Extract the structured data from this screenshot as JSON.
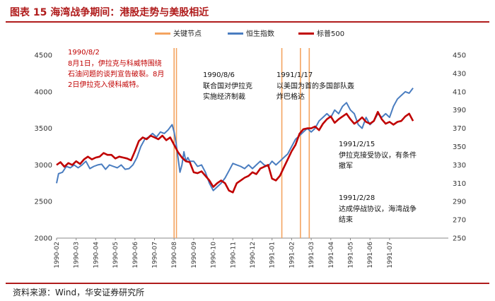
{
  "page": {
    "title": "图表 15 海湾战争期间：港股走势与美股相近",
    "source": "资料来源：Wind，华安证券研究所"
  },
  "colors": {
    "hsi": "#4a7dc0",
    "sp500": "#c00000",
    "events": "#f4a460",
    "title_red": "#b01c1c"
  },
  "chart_data": {
    "type": "line",
    "title": "海湾战争期间：港股走势与美股相近",
    "legend": [
      {
        "name": "关键节点",
        "kind": "bar"
      },
      {
        "name": "恒生指数",
        "kind": "line"
      },
      {
        "name": "标普500",
        "kind": "line"
      }
    ],
    "legend_placement": "top",
    "y_left": {
      "min": 2000,
      "max": 4500,
      "ticks": [
        2000,
        2500,
        3000,
        3500,
        4000,
        4500
      ]
    },
    "y_right": {
      "min": 250,
      "max": 450,
      "ticks": [
        250,
        270,
        290,
        310,
        330,
        350,
        370,
        390,
        410,
        430,
        450
      ]
    },
    "x_range": [
      0,
      20
    ],
    "x_ticks": [
      "1990-02",
      "1990-03",
      "1990-04",
      "1990-05",
      "1990-06",
      "1990-07",
      "1990-08",
      "1990-09",
      "1990-10",
      "1990-11",
      "1990-12",
      "1991-01",
      "1991-02",
      "1991-03",
      "1991-04",
      "1991-05",
      "1991-06",
      "1991-07"
    ],
    "key_dates": [
      {
        "date": "1990/8/2",
        "x": 6.0
      },
      {
        "date": "1990/8/6",
        "x": 6.12
      },
      {
        "date": "1991/1/17",
        "x": 11.5
      },
      {
        "date": "1991/2/15",
        "x": 12.45
      },
      {
        "date": "1991/2/28",
        "x": 12.9
      }
    ],
    "series": [
      {
        "name": "恒生指数",
        "axis": "left",
        "points": [
          [
            0.0,
            2750
          ],
          [
            0.1,
            2880
          ],
          [
            0.3,
            2900
          ],
          [
            0.5,
            2980
          ],
          [
            0.7,
            2960
          ],
          [
            0.9,
            3000
          ],
          [
            1.1,
            2960
          ],
          [
            1.3,
            3000
          ],
          [
            1.5,
            3050
          ],
          [
            1.7,
            2950
          ],
          [
            1.9,
            2980
          ],
          [
            2.1,
            3000
          ],
          [
            2.3,
            3010
          ],
          [
            2.5,
            2940
          ],
          [
            2.7,
            3000
          ],
          [
            2.9,
            2980
          ],
          [
            3.1,
            2960
          ],
          [
            3.3,
            3000
          ],
          [
            3.5,
            2940
          ],
          [
            3.7,
            2950
          ],
          [
            3.9,
            3000
          ],
          [
            4.1,
            3100
          ],
          [
            4.3,
            3250
          ],
          [
            4.5,
            3350
          ],
          [
            4.7,
            3380
          ],
          [
            4.9,
            3430
          ],
          [
            5.1,
            3380
          ],
          [
            5.3,
            3450
          ],
          [
            5.5,
            3430
          ],
          [
            5.7,
            3480
          ],
          [
            5.9,
            3550
          ],
          [
            6.0,
            3450
          ],
          [
            6.1,
            3300
          ],
          [
            6.2,
            3100
          ],
          [
            6.3,
            2900
          ],
          [
            6.4,
            3000
          ],
          [
            6.5,
            3180
          ],
          [
            6.6,
            3050
          ],
          [
            6.7,
            3100
          ],
          [
            6.8,
            3050
          ],
          [
            7.0,
            3050
          ],
          [
            7.2,
            2980
          ],
          [
            7.4,
            3000
          ],
          [
            7.6,
            2900
          ],
          [
            7.8,
            2750
          ],
          [
            8.0,
            2650
          ],
          [
            8.2,
            2700
          ],
          [
            8.4,
            2750
          ],
          [
            8.6,
            2820
          ],
          [
            8.8,
            2920
          ],
          [
            9.0,
            3020
          ],
          [
            9.2,
            3000
          ],
          [
            9.4,
            2980
          ],
          [
            9.6,
            2950
          ],
          [
            9.8,
            3000
          ],
          [
            10.0,
            2950
          ],
          [
            10.2,
            3000
          ],
          [
            10.4,
            3050
          ],
          [
            10.6,
            3000
          ],
          [
            10.8,
            2980
          ],
          [
            11.0,
            3050
          ],
          [
            11.2,
            3000
          ],
          [
            11.4,
            3050
          ],
          [
            11.6,
            3100
          ],
          [
            11.8,
            3150
          ],
          [
            12.0,
            3250
          ],
          [
            12.2,
            3350
          ],
          [
            12.4,
            3400
          ],
          [
            12.6,
            3450
          ],
          [
            12.8,
            3500
          ],
          [
            13.0,
            3450
          ],
          [
            13.2,
            3500
          ],
          [
            13.4,
            3600
          ],
          [
            13.6,
            3650
          ],
          [
            13.8,
            3700
          ],
          [
            14.0,
            3650
          ],
          [
            14.2,
            3750
          ],
          [
            14.4,
            3700
          ],
          [
            14.6,
            3800
          ],
          [
            14.8,
            3850
          ],
          [
            15.0,
            3750
          ],
          [
            15.2,
            3700
          ],
          [
            15.4,
            3550
          ],
          [
            15.6,
            3500
          ],
          [
            15.8,
            3650
          ],
          [
            16.0,
            3550
          ],
          [
            16.2,
            3600
          ],
          [
            16.4,
            3700
          ],
          [
            16.6,
            3650
          ],
          [
            16.8,
            3700
          ],
          [
            17.0,
            3650
          ],
          [
            17.2,
            3800
          ],
          [
            17.4,
            3900
          ],
          [
            17.6,
            3950
          ],
          [
            17.8,
            4000
          ],
          [
            18.0,
            3980
          ],
          [
            18.2,
            4050
          ]
        ]
      },
      {
        "name": "标普500",
        "axis": "right",
        "points": [
          [
            0.0,
            330
          ],
          [
            0.2,
            333
          ],
          [
            0.4,
            328
          ],
          [
            0.6,
            332
          ],
          [
            0.8,
            330
          ],
          [
            1.0,
            334
          ],
          [
            1.2,
            331
          ],
          [
            1.4,
            336
          ],
          [
            1.6,
            339
          ],
          [
            1.8,
            336
          ],
          [
            2.0,
            338
          ],
          [
            2.2,
            339
          ],
          [
            2.4,
            343
          ],
          [
            2.6,
            341
          ],
          [
            2.8,
            341
          ],
          [
            3.0,
            337
          ],
          [
            3.2,
            339
          ],
          [
            3.4,
            338
          ],
          [
            3.6,
            337
          ],
          [
            3.8,
            335
          ],
          [
            4.0,
            345
          ],
          [
            4.2,
            356
          ],
          [
            4.4,
            360
          ],
          [
            4.6,
            358
          ],
          [
            4.8,
            362
          ],
          [
            5.0,
            360
          ],
          [
            5.2,
            358
          ],
          [
            5.4,
            362
          ],
          [
            5.6,
            357
          ],
          [
            5.8,
            360
          ],
          [
            6.0,
            352
          ],
          [
            6.2,
            344
          ],
          [
            6.4,
            338
          ],
          [
            6.6,
            334
          ],
          [
            6.8,
            333
          ],
          [
            7.0,
            322
          ],
          [
            7.2,
            321
          ],
          [
            7.4,
            323
          ],
          [
            7.6,
            318
          ],
          [
            7.8,
            313
          ],
          [
            8.0,
            306
          ],
          [
            8.2,
            310
          ],
          [
            8.4,
            313
          ],
          [
            8.6,
            310
          ],
          [
            8.8,
            302
          ],
          [
            9.0,
            300
          ],
          [
            9.2,
            310
          ],
          [
            9.4,
            313
          ],
          [
            9.6,
            316
          ],
          [
            9.8,
            318
          ],
          [
            10.0,
            322
          ],
          [
            10.2,
            320
          ],
          [
            10.4,
            326
          ],
          [
            10.6,
            328
          ],
          [
            10.8,
            330
          ],
          [
            11.0,
            315
          ],
          [
            11.2,
            313
          ],
          [
            11.4,
            318
          ],
          [
            11.6,
            327
          ],
          [
            11.8,
            336
          ],
          [
            12.0,
            345
          ],
          [
            12.2,
            352
          ],
          [
            12.4,
            364
          ],
          [
            12.6,
            369
          ],
          [
            12.8,
            370
          ],
          [
            13.0,
            370
          ],
          [
            13.2,
            372
          ],
          [
            13.4,
            368
          ],
          [
            13.6,
            375
          ],
          [
            13.8,
            380
          ],
          [
            14.0,
            383
          ],
          [
            14.2,
            376
          ],
          [
            14.4,
            380
          ],
          [
            14.6,
            383
          ],
          [
            14.8,
            386
          ],
          [
            15.0,
            380
          ],
          [
            15.2,
            375
          ],
          [
            15.4,
            378
          ],
          [
            15.6,
            382
          ],
          [
            15.8,
            377
          ],
          [
            16.0,
            375
          ],
          [
            16.2,
            378
          ],
          [
            16.4,
            388
          ],
          [
            16.6,
            380
          ],
          [
            16.8,
            375
          ],
          [
            17.0,
            377
          ],
          [
            17.2,
            374
          ],
          [
            17.4,
            377
          ],
          [
            17.6,
            378
          ],
          [
            17.8,
            383
          ],
          [
            18.0,
            386
          ],
          [
            18.2,
            378
          ]
        ]
      }
    ]
  },
  "annotations": [
    {
      "lines": [
        "1990/8/2",
        "8月1日，伊拉克与科威特围绕",
        "石油问题的谈判宣告破裂。8月",
        "2日伊拉克入侵科威特。"
      ],
      "color": "red"
    },
    {
      "lines": [
        "1990/8/6",
        "联合国对伊拉克",
        "实施经济制裁"
      ],
      "color": "black"
    },
    {
      "lines": [
        "1991/1/17",
        "以美国为首的多国部队轰",
        "炸巴格达"
      ],
      "color": "black"
    },
    {
      "lines": [
        "1991/2/15",
        "伊拉克接受协议，有条件",
        "撤军"
      ],
      "color": "black"
    },
    {
      "lines": [
        "1991/2/28",
        "达成停战协议，海湾战争",
        "结束"
      ],
      "color": "black"
    }
  ]
}
